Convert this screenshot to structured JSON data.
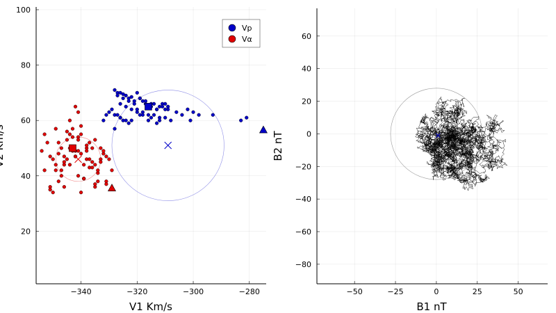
{
  "chart_data": [
    {
      "type": "scatter",
      "xlabel": "V1 Km/s",
      "ylabel": "V2 Km/s",
      "xlim": [
        -356,
        -274
      ],
      "ylim": [
        1,
        101
      ],
      "xticks": [
        -340,
        -320,
        -300,
        -280
      ],
      "yticks": [
        20,
        40,
        60,
        80,
        100
      ],
      "grid": true,
      "legend_position": "top-right",
      "series": [
        {
          "name": "Vp",
          "color": "#0000c8",
          "x": [
            -328,
            -327,
            -326,
            -325,
            -324,
            -323,
            -322,
            -321,
            -320,
            -319,
            -318,
            -317,
            -316,
            -315,
            -314,
            -313,
            -312,
            -311,
            -310,
            -309,
            -327,
            -325,
            -323,
            -321,
            -319,
            -317,
            -315,
            -313,
            -311,
            -309,
            -326,
            -324,
            -322,
            -320,
            -318,
            -316,
            -314,
            -312,
            -310,
            -308,
            -332,
            -331,
            -330,
            -329,
            -328,
            -327,
            -326,
            -325,
            -324,
            -323,
            -306,
            -304,
            -302,
            -301,
            -300,
            -298,
            -293,
            -283,
            -281,
            -320,
            -318,
            -315,
            -312,
            -328,
            -326,
            -322,
            -319,
            -316,
            -313,
            -310
          ],
          "y": [
            71,
            70,
            70,
            69.5,
            69,
            68,
            68.5,
            67,
            70,
            68,
            67,
            66,
            65,
            66,
            66,
            64,
            65,
            66,
            66,
            65,
            69,
            68,
            67,
            66,
            68,
            67,
            65,
            64,
            65,
            64,
            66,
            65,
            64,
            63,
            63,
            62,
            62,
            61,
            61,
            60,
            60,
            62,
            63,
            64,
            62,
            62,
            61,
            60,
            60,
            59,
            63,
            62,
            64,
            60,
            63,
            62,
            62,
            60,
            61,
            64,
            62,
            61,
            60,
            57,
            61,
            60,
            62,
            60,
            59,
            64
          ],
          "mean_marker": [
            -316,
            65
          ],
          "triangle_marker": [
            -275,
            56.5
          ],
          "centroid_x": [
            -309,
            51
          ],
          "circle_radius": 20
        },
        {
          "name": "Vα",
          "color": "#e00000",
          "x": [
            -354,
            -353,
            -352,
            -351,
            -350,
            -349,
            -348,
            -347,
            -346,
            -345,
            -344,
            -343,
            -342,
            -341,
            -340,
            -339,
            -338,
            -337,
            -336,
            -335,
            -334,
            -333,
            -332,
            -331,
            -330,
            -329,
            -353,
            -351,
            -349,
            -347,
            -345,
            -343,
            -341,
            -339,
            -337,
            -335,
            -333,
            -331,
            -350,
            -348,
            -346,
            -344,
            -342,
            -340,
            -338,
            -336,
            -334,
            -332,
            -349,
            -346,
            -343,
            -340,
            -337,
            -334,
            -331,
            -347,
            -344,
            -341,
            -338,
            -335,
            -351,
            -348,
            -345,
            -342,
            -339,
            -336,
            -333,
            -341,
            -338,
            -335,
            -346,
            -344,
            -342,
            -340,
            -339,
            -341
          ],
          "y": [
            49,
            42,
            52,
            36,
            46,
            57,
            48,
            40,
            44,
            53,
            50,
            57,
            47,
            63,
            55,
            39,
            50,
            52,
            45,
            44,
            41,
            50,
            48,
            47,
            46,
            42,
            55,
            47,
            44,
            42,
            56,
            49,
            54,
            44,
            43,
            53,
            46,
            38,
            34,
            38,
            36,
            60,
            65,
            58,
            46,
            50,
            38,
            49,
            42,
            47,
            54,
            48,
            46,
            42,
            37,
            50,
            44,
            49,
            51,
            36,
            35,
            52,
            46,
            47,
            39,
            43,
            45,
            53,
            49,
            37,
            45,
            55,
            49,
            34,
            39,
            40
          ],
          "mean_marker": [
            -343,
            50
          ],
          "triangle_marker": [
            -329,
            35.5
          ],
          "centroid_x": [
            -341,
            46
          ],
          "circle_radius": 8
        }
      ]
    },
    {
      "type": "line",
      "xlabel": "B1 nT",
      "ylabel": "B2 nT",
      "xlim": [
        -73,
        68
      ],
      "ylim": [
        -92,
        77
      ],
      "xticks": [
        -50,
        -25,
        0,
        25,
        50
      ],
      "yticks": [
        -80,
        -60,
        -40,
        -20,
        0,
        20,
        40,
        60
      ],
      "grid": true,
      "series": [
        {
          "name": "",
          "color": "#000000",
          "description_center": [
            0,
            -10
          ],
          "circle_center": [
            0,
            0
          ],
          "circle_radius": 28,
          "mean_marker": [
            1,
            -1
          ]
        }
      ]
    }
  ],
  "legend": {
    "items": [
      {
        "label": "Vp",
        "color": "#0000c8"
      },
      {
        "label": "Vα",
        "color": "#e00000"
      }
    ]
  }
}
